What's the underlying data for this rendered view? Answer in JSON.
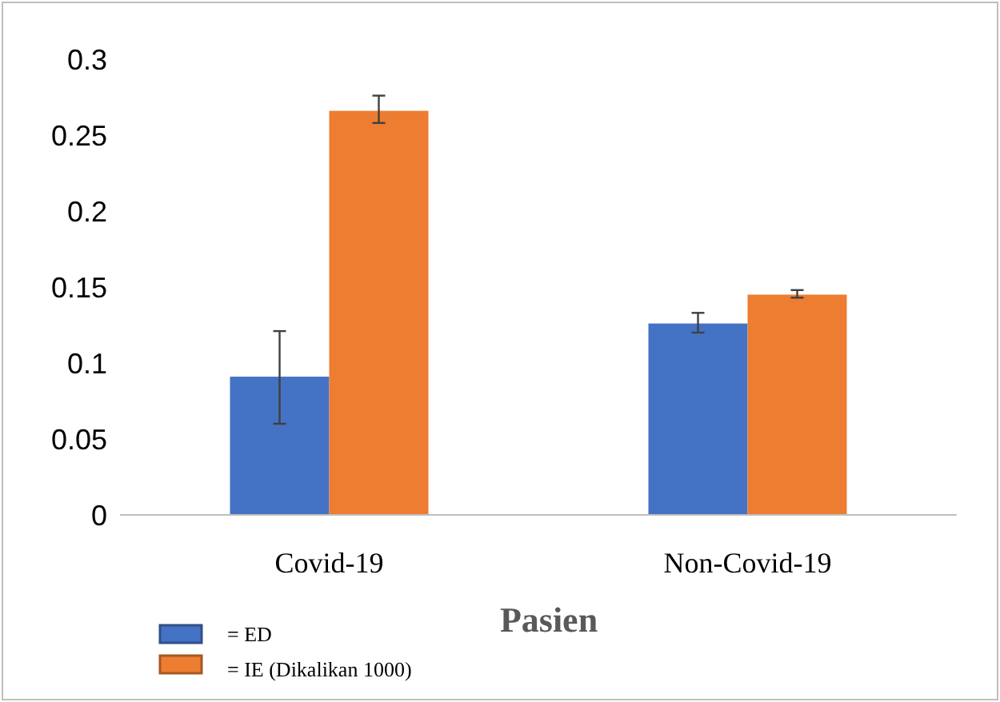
{
  "chart_data": {
    "type": "bar",
    "xlabel": "Pasien",
    "categories": [
      "Covid-19",
      "Non-Covid-19"
    ],
    "series": [
      {
        "name": "= ED",
        "color": "#4472c4",
        "values": [
          0.091,
          0.126
        ],
        "errors": [
          [
            0.06,
            0.121
          ],
          [
            0.12,
            0.133
          ]
        ]
      },
      {
        "name": "= IE (Dikalikan 1000)",
        "color": "#ed7d31",
        "values": [
          0.266,
          0.145
        ],
        "errors": [
          [
            0.258,
            0.276
          ],
          [
            0.143,
            0.148
          ]
        ]
      }
    ],
    "ylim": [
      0,
      0.3
    ],
    "yticks": [
      0,
      0.05,
      0.1,
      0.15,
      0.2,
      0.25,
      0.3
    ],
    "grid": false,
    "legend": "bottom left"
  }
}
